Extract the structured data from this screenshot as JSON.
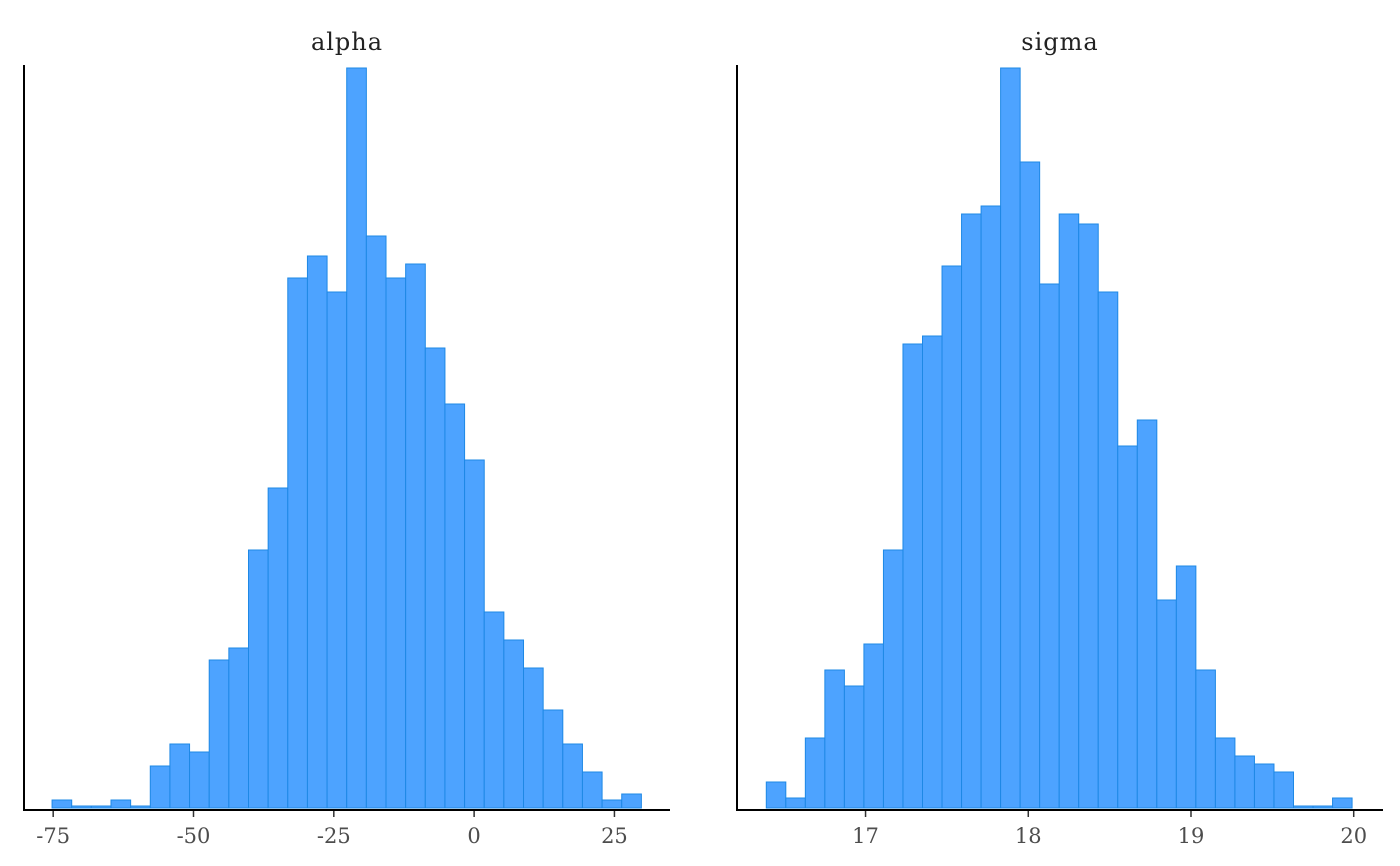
{
  "chart_data": [
    {
      "type": "histogram",
      "title": "alpha",
      "color": "#4da3ff",
      "edgecolor": "#1e88e5",
      "bins": [
        -75.2,
        -71.7,
        -68.2,
        -64.7,
        -61.2,
        -57.7,
        -54.2,
        -50.7,
        -47.2,
        -43.7,
        -40.2,
        -36.7,
        -33.2,
        -29.7,
        -26.2,
        -22.7,
        -19.2,
        -15.7,
        -12.2,
        -8.7,
        -5.2,
        -1.7,
        1.8,
        5.3,
        8.8,
        12.3,
        15.8,
        19.3,
        22.8,
        26.3,
        29.8
      ],
      "values": [
        4,
        1,
        1,
        4,
        1,
        21,
        32,
        28,
        74,
        80,
        129,
        160,
        265,
        276,
        258,
        370,
        286,
        265,
        272,
        230,
        202,
        174,
        98,
        84,
        70,
        49,
        32,
        18,
        4,
        7
      ],
      "xlim": [
        -80.2,
        34.9
      ],
      "ylim": [
        0,
        371.5
      ],
      "xticks": [
        -75,
        -50,
        -25,
        0,
        25
      ]
    },
    {
      "type": "histogram",
      "title": "sigma",
      "color": "#4da3ff",
      "edgecolor": "#1e88e5",
      "bins": [
        16.39,
        16.51,
        16.63,
        16.75,
        16.87,
        16.99,
        17.11,
        17.23,
        17.35,
        17.47,
        17.59,
        17.71,
        17.83,
        17.95,
        18.07,
        18.19,
        18.31,
        18.43,
        18.55,
        18.67,
        18.79,
        18.91,
        19.03,
        19.15,
        19.27,
        19.39,
        19.51,
        19.63,
        19.75,
        19.87,
        19.99
      ],
      "values": [
        13,
        5,
        35,
        69,
        61,
        82,
        129,
        232,
        236,
        271,
        297,
        301,
        370,
        323,
        262,
        297,
        292,
        258,
        181,
        194,
        104,
        121,
        69,
        35,
        26,
        22,
        18,
        1,
        1,
        5
      ],
      "xlim": [
        16.21,
        20.18
      ],
      "ylim": [
        0,
        371.5
      ],
      "xticks": [
        17,
        18,
        19,
        20
      ]
    }
  ]
}
